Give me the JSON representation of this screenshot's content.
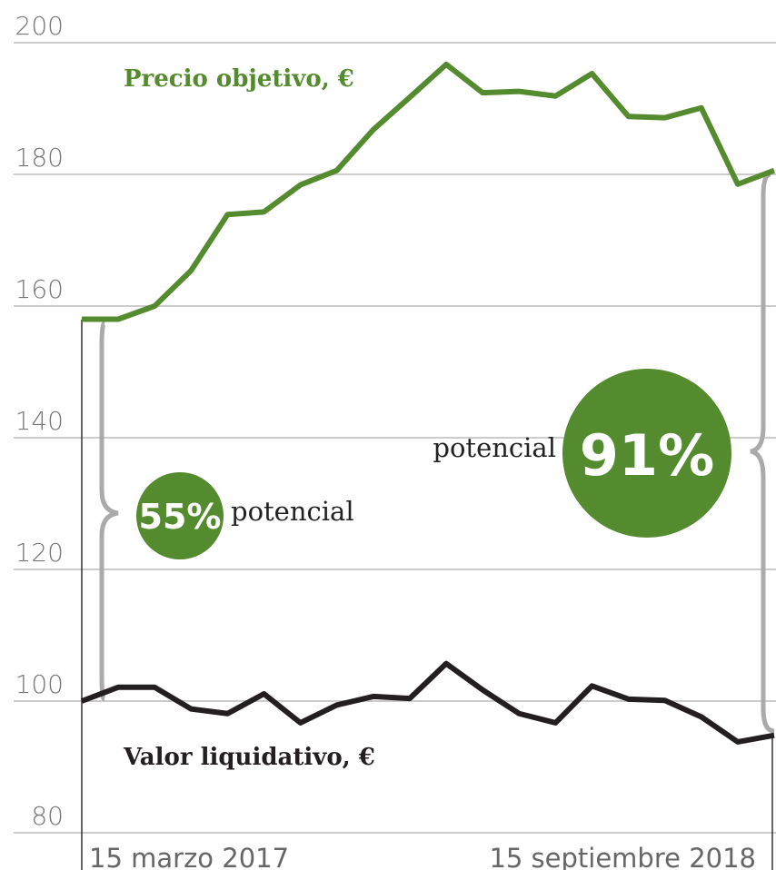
{
  "chart_data": {
    "type": "line",
    "categories": [
      "15 marzo 2017",
      null,
      null,
      null,
      null,
      null,
      null,
      null,
      null,
      null,
      null,
      null,
      null,
      null,
      null,
      null,
      null,
      null,
      null,
      "15 septiembre 2018"
    ],
    "series": [
      {
        "name": "Precio objetivo, €",
        "color": "#548b2e",
        "values": [
          158,
          158,
          160,
          165.4,
          173.9,
          174.3,
          178.4,
          180.6,
          186.8,
          191.7,
          196.7,
          192.4,
          192.6,
          191.9,
          195.3,
          188.8,
          188.6,
          190.1,
          178.5,
          180.6
        ]
      },
      {
        "name": "Valor liquidativo, €",
        "color": "#231f20",
        "values": [
          100,
          102.1,
          102.1,
          98.8,
          98.1,
          101.1,
          96.7,
          99.4,
          100.7,
          100.4,
          105.7,
          101.7,
          98.1,
          96.7,
          102.3,
          100.3,
          100.1,
          97.6,
          93.8,
          94.8
        ]
      }
    ],
    "ylim": [
      80,
      200
    ],
    "yticks": [
      80,
      100,
      120,
      140,
      160,
      180,
      200
    ],
    "grid": true,
    "annotations": [
      "55%",
      "potencial",
      "91%",
      "potencial"
    ]
  }
}
